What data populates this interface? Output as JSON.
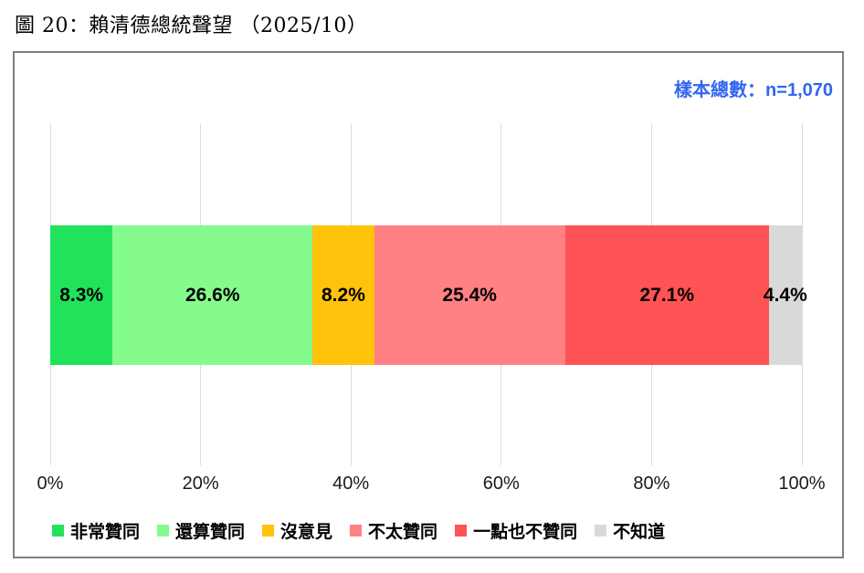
{
  "title": "圖 20：賴清德總統聲望 （2025/10）",
  "sample_label": "樣本總數：n=1,070",
  "colors": {
    "sample_text": "#3366f0",
    "gridline": "#dcdcdc",
    "frame_border": "#7f7f7f",
    "percent_label": "#000000"
  },
  "chart_data": {
    "type": "bar",
    "orientation": "horizontal",
    "stacked": true,
    "title": "圖 20：賴清德總統聲望 （2025/10）",
    "subtitle": "樣本總數：n=1,070",
    "sample_size": 1070,
    "series": [
      {
        "name": "非常贊同",
        "value": 8.3,
        "label": "8.3%",
        "color": "#21e35b"
      },
      {
        "name": "還算贊同",
        "value": 26.6,
        "label": "26.6%",
        "color": "#86fb8d"
      },
      {
        "name": "沒意見",
        "value": 8.2,
        "label": "8.2%",
        "color": "#ffc30b"
      },
      {
        "name": "不太贊同",
        "value": 25.4,
        "label": "25.4%",
        "color": "#ff8183"
      },
      {
        "name": "一點也不贊同",
        "value": 27.1,
        "label": "27.1%",
        "color": "#ff5355"
      },
      {
        "name": "不知道",
        "value": 4.4,
        "label": "4.4%",
        "color": "#d9d9d9"
      }
    ],
    "x_ticks": [
      "0%",
      "20%",
      "40%",
      "60%",
      "80%",
      "100%"
    ],
    "x_tick_values": [
      0,
      20,
      40,
      60,
      80,
      100
    ],
    "xlim": [
      0,
      100
    ],
    "grid": true,
    "legend_position": "bottom"
  }
}
